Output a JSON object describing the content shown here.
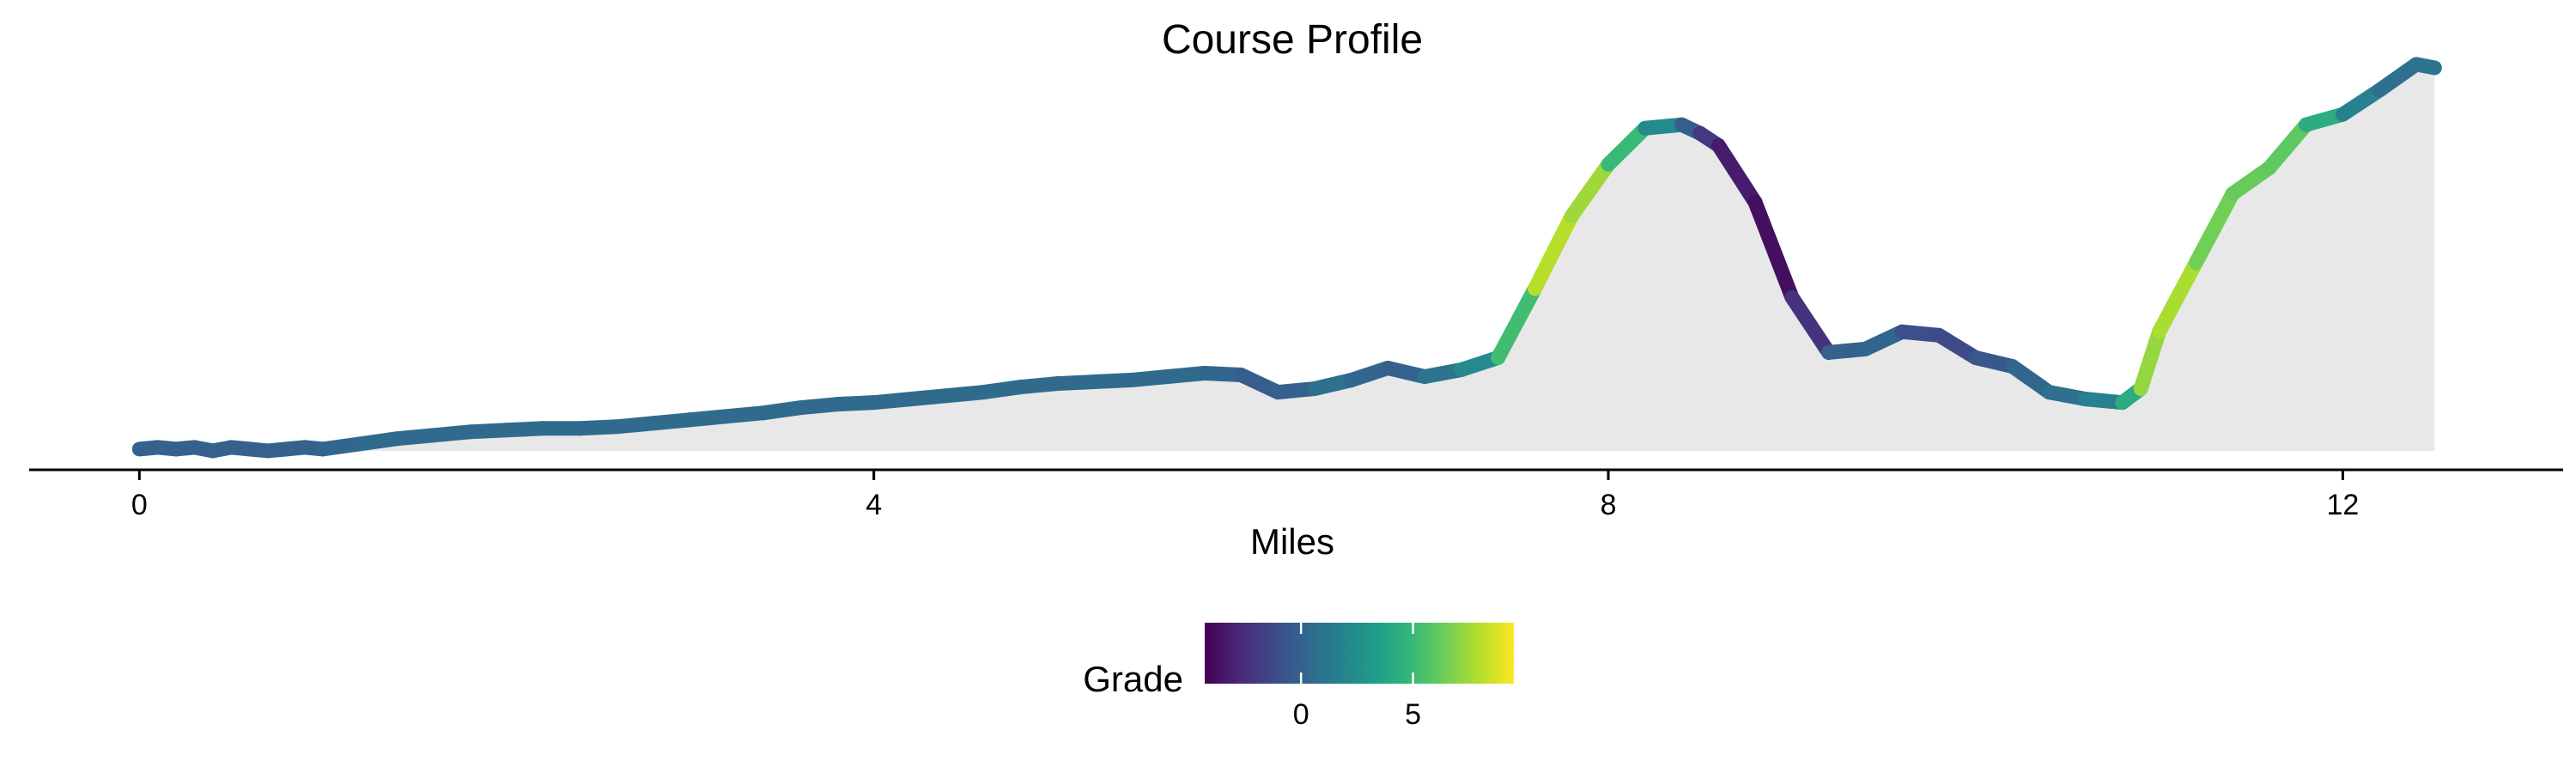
{
  "chart_data": {
    "type": "area",
    "title": "Course Profile",
    "xlabel": "Miles",
    "ylabel": "",
    "xlim": [
      -0.6,
      13.2
    ],
    "ylim": [
      -10,
      215
    ],
    "x_ticks": [
      0,
      4,
      8,
      12
    ],
    "x_tick_labels": [
      "0",
      "4",
      "8",
      "12"
    ],
    "y_axis_shown": false,
    "grid": false,
    "fill_color": "#e8e8e8",
    "series": [
      {
        "x": [
          0,
          0.1,
          0.2,
          0.3,
          0.4,
          0.5,
          0.6,
          0.7,
          0.8,
          0.9,
          1,
          1.2,
          1.4,
          1.6,
          1.8,
          2,
          2.2,
          2.4,
          2.6,
          2.8,
          3,
          3.2,
          3.4,
          3.6,
          3.8,
          4,
          4.2,
          4.4,
          4.6,
          4.8,
          5,
          5.2,
          5.4,
          5.6,
          5.8,
          6,
          6.2,
          6.4,
          6.6,
          6.8,
          7,
          7.2,
          7.4,
          7.6,
          7.8,
          8,
          8.2,
          8.4,
          8.5,
          8.6,
          8.8,
          9,
          9.2,
          9.4,
          9.6,
          9.8,
          10,
          10.2,
          10.4,
          10.6,
          10.8,
          10.9,
          11,
          11.2,
          11.4,
          11.6,
          11.8,
          12,
          12.2,
          12.4,
          12.5
        ],
        "y": [
          2,
          3,
          2,
          3,
          1,
          3,
          2,
          1,
          2,
          3,
          2,
          5,
          8,
          10,
          12,
          13,
          14,
          14,
          15,
          17,
          19,
          21,
          23,
          26,
          28,
          29,
          31,
          33,
          35,
          38,
          40,
          41,
          42,
          44,
          46,
          45,
          35,
          37,
          42,
          49,
          44,
          48,
          55,
          95,
          137,
          167,
          188,
          190,
          185,
          178,
          145,
          90,
          58,
          60,
          70,
          68,
          55,
          50,
          35,
          31,
          29,
          37,
          70,
          110,
          150,
          165,
          190,
          196,
          210,
          225,
          223
        ],
        "grade": [
          0,
          0,
          0,
          0,
          0,
          0,
          0,
          0,
          0,
          0,
          0,
          0.5,
          0.5,
          0.5,
          0.5,
          0.5,
          0.5,
          0.5,
          0.5,
          0.5,
          0.5,
          0.5,
          0.5,
          0.5,
          0.5,
          0.5,
          0.5,
          0.5,
          0.5,
          0.5,
          0.5,
          0.5,
          0.5,
          0.5,
          0.5,
          0,
          -0.5,
          0.5,
          1,
          -0.5,
          0.5,
          1.5,
          3,
          7.5,
          8.5,
          6.5,
          3.5,
          1,
          -1.5,
          -2.5,
          -4,
          -3.5,
          -1,
          1,
          -0.5,
          -1.5,
          -1,
          0,
          0.5,
          1,
          2.5,
          6,
          8.5,
          7,
          6,
          6.5,
          5.5,
          3,
          0.5,
          1,
          1
        ]
      }
    ],
    "colorbar": {
      "title": "Grade",
      "ticks": [
        0,
        5
      ],
      "tick_labels": [
        "0",
        "5"
      ],
      "range": [
        -4.3,
        9.5
      ],
      "colors": [
        "#440154",
        "#482878",
        "#3e4a89",
        "#31688e",
        "#26828e",
        "#1f9e89",
        "#35b779",
        "#6ece58",
        "#b5de2b",
        "#fde725"
      ]
    }
  }
}
